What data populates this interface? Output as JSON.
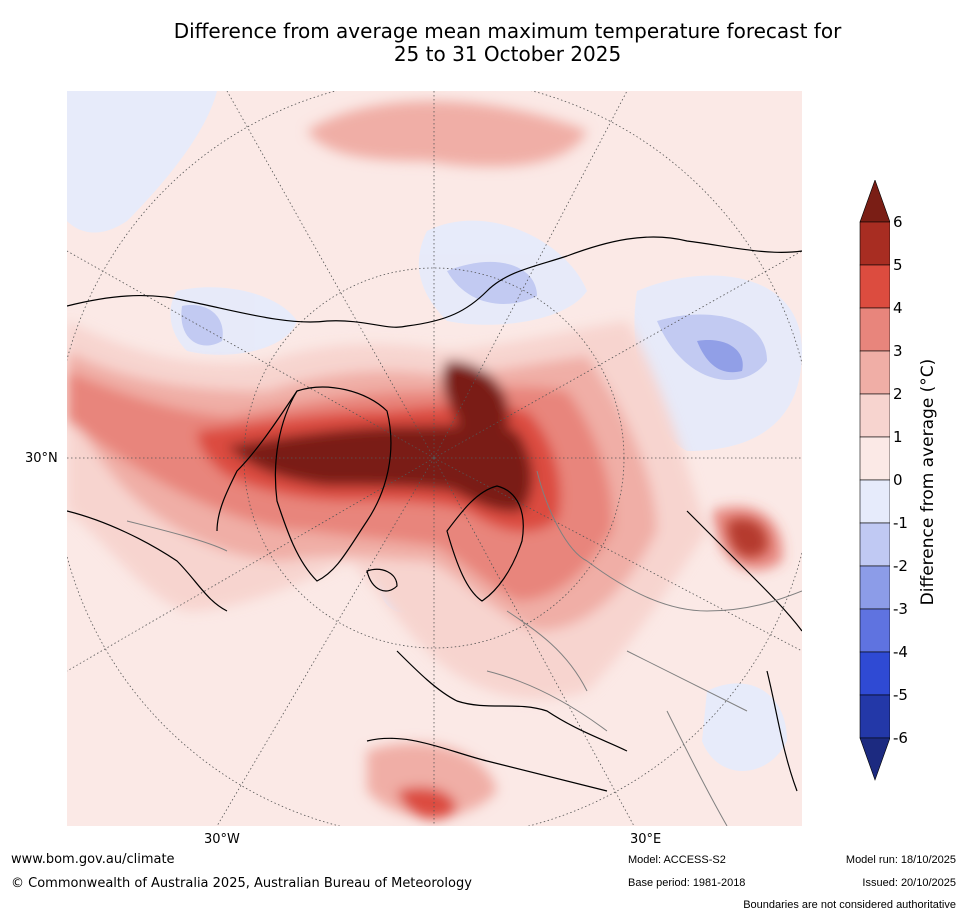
{
  "title": {
    "line1": "Difference from average mean maximum temperature forecast for",
    "line2": "25 to 31 October 2025"
  },
  "map": {
    "axis_labels": {
      "lat_30n": "30°N",
      "lon_30w": "30°W",
      "lon_30e": "30°E"
    },
    "colors": {
      "background_anomaly": "#fbe9e6",
      "ocean_light_blue": "#e6ebfb",
      "coastline": "#000000",
      "borders": "#808080",
      "gridlines": "#555555"
    }
  },
  "colorbar": {
    "title": "Difference from average (°C)",
    "ticks": [
      "6",
      "5",
      "4",
      "3",
      "2",
      "1",
      "0",
      "-1",
      "-2",
      "-3",
      "-4",
      "-5",
      "-6"
    ],
    "bins": [
      {
        "range": "5 to 6",
        "color": "#a82d22"
      },
      {
        "range": "4 to 5",
        "color": "#dc4c3f"
      },
      {
        "range": "3 to 4",
        "color": "#e8857c"
      },
      {
        "range": "2 to 3",
        "color": "#f0aea6"
      },
      {
        "range": "1 to 2",
        "color": "#f7d4cf"
      },
      {
        "range": "0 to 1",
        "color": "#fbe9e6"
      },
      {
        "range": "-1 to 0",
        "color": "#e6ebfb"
      },
      {
        "range": "-2 to -1",
        "color": "#c0c9f3"
      },
      {
        "range": "-3 to -2",
        "color": "#8c9ce8"
      },
      {
        "range": "-4 to -3",
        "color": "#5f73e0"
      },
      {
        "range": "-5 to -4",
        "color": "#2f4ad4"
      },
      {
        "range": "-6 to -5",
        "color": "#2338a8"
      }
    ],
    "extend_top_color": "#7a1e15",
    "extend_bottom_color": "#1c2a80"
  },
  "footer": {
    "website": "www.bom.gov.au/climate",
    "copyright": "© Commonwealth of Australia 2025, Australian Bureau of Meteorology",
    "model": "Model: ACCESS-S2",
    "base_period": "Base period: 1981-2018",
    "model_run": "Model run: 18/10/2025",
    "issued": "Issued: 20/10/2025",
    "disclaimer": "Boundaries are not considered authoritative"
  }
}
